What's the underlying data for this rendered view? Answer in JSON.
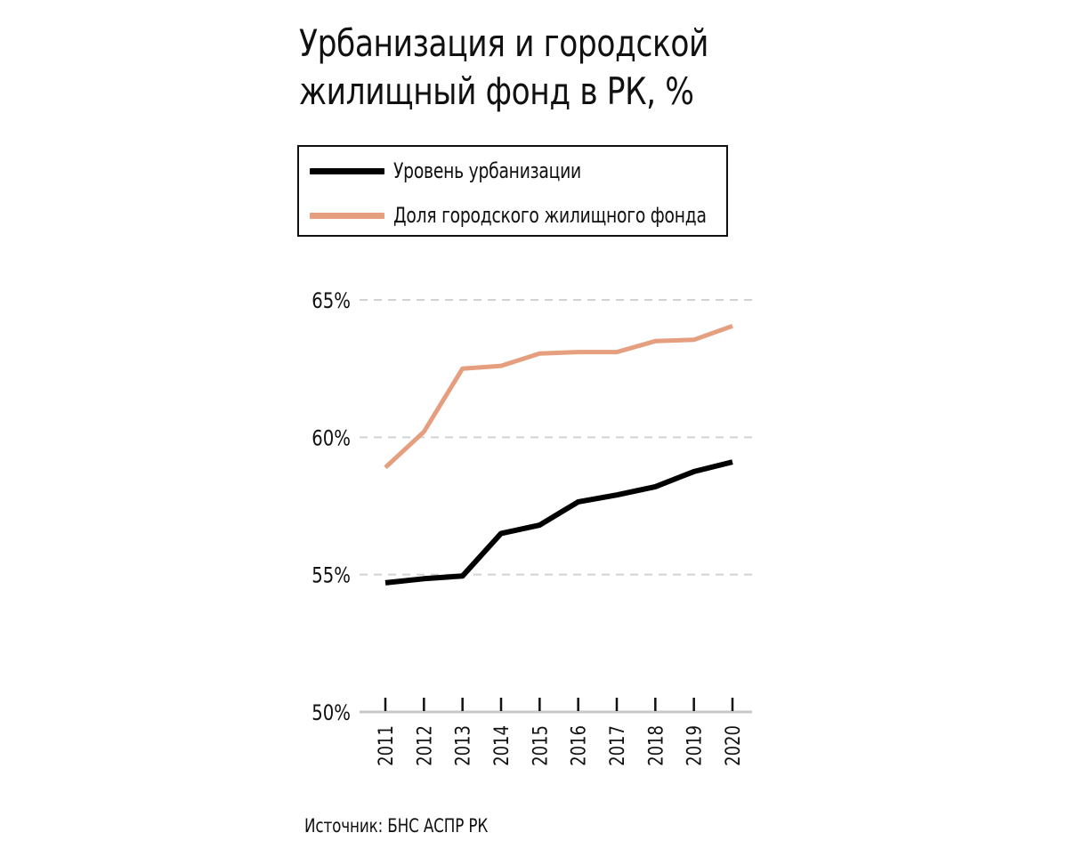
{
  "title_line1": "Урбанизация и городской",
  "title_line2": "жилищный фонд в РК, %",
  "source": "Источник: БНС АСПР РК",
  "chart_data": {
    "type": "line",
    "x": [
      "2011",
      "2012",
      "2013",
      "2014",
      "2015",
      "2016",
      "2017",
      "2018",
      "2019",
      "2020"
    ],
    "series": [
      {
        "name": "Уровень урбанизации",
        "color": "#000000",
        "values": [
          54.7,
          54.85,
          54.95,
          56.5,
          56.8,
          57.65,
          57.9,
          58.2,
          58.75,
          59.1
        ]
      },
      {
        "name": "Доля городского жилищного фонда",
        "color": "#e59e7e",
        "values": [
          58.9,
          60.2,
          62.5,
          62.6,
          63.05,
          63.1,
          63.1,
          63.5,
          63.55,
          64.05
        ]
      }
    ],
    "y_ticks": [
      50,
      55,
      60,
      65
    ],
    "y_tick_labels": [
      "50%",
      "55%",
      "60%",
      "65%"
    ],
    "ylim": [
      50,
      65
    ],
    "grid": "dashed horizontal",
    "legend_position": "top-left"
  }
}
